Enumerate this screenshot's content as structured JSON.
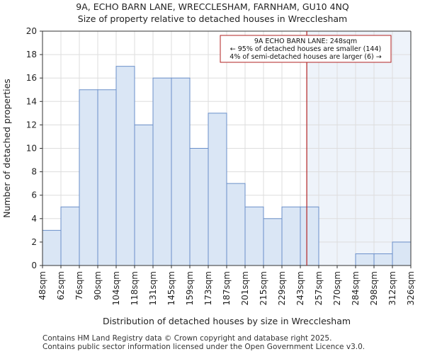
{
  "header": {
    "title_line1": "9A, ECHO BARN LANE, WRECCLESHAM, FARNHAM, GU10 4NQ",
    "title_line2": "Size of property relative to detached houses in Wrecclesham"
  },
  "footer": {
    "line1": "Contains HM Land Registry data © Crown copyright and database right 2025.",
    "line2": "Contains public sector information licensed under the Open Government Licence v3.0."
  },
  "chart_data": {
    "type": "bar",
    "xlabel": "Distribution of detached houses by size in Wrecclesham",
    "ylabel": "Number of detached properties",
    "ylim": [
      0,
      20
    ],
    "yticks": [
      0,
      2,
      4,
      6,
      8,
      10,
      12,
      14,
      16,
      18,
      20
    ],
    "tick_labels": [
      "48sqm",
      "62sqm",
      "76sqm",
      "90sqm",
      "104sqm",
      "118sqm",
      "131sqm",
      "145sqm",
      "159sqm",
      "173sqm",
      "187sqm",
      "201sqm",
      "215sqm",
      "229sqm",
      "243sqm",
      "257sqm",
      "270sqm",
      "284sqm",
      "298sqm",
      "312sqm",
      "326sqm"
    ],
    "values": [
      3,
      5,
      15,
      15,
      17,
      12,
      16,
      16,
      10,
      13,
      7,
      5,
      4,
      5,
      5,
      0,
      0,
      1,
      1,
      2
    ],
    "grid": true,
    "property_marker": {
      "value_sqm": 248,
      "bin_position": 14.35,
      "line_color": "#b22222",
      "annotation": [
        "9A ECHO BARN LANE: 248sqm",
        "← 95% of detached houses are smaller (144)",
        "4% of semi-detached houses are larger (6) →"
      ]
    },
    "colors": {
      "bar_fill": "#dae6f5",
      "bar_stroke": "#6a8fc9",
      "highlight_region": "#eef3fa",
      "grid": "#dddddd"
    }
  }
}
